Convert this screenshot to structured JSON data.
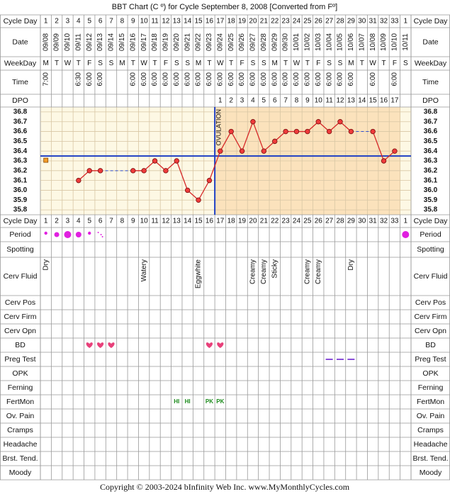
{
  "title": "BBT Chart (C º) for Cycle September 8, 2008  [Converted from Fº]",
  "row_labels": {
    "cycle_day": "Cycle Day",
    "date": "Date",
    "weekday": "WeekDay",
    "time": "Time",
    "dpo": "DPO",
    "period": "Period",
    "spotting": "Spotting",
    "cerv_fluid": "Cerv Fluid",
    "cerv_pos": "Cerv Pos",
    "cerv_firm": "Cerv Firm",
    "cerv_opn": "Cerv Opn",
    "bd": "BD",
    "preg_test": "Preg Test",
    "opk": "OPK",
    "ferning": "Ferning",
    "fertmon": "FertMon",
    "ov_pain": "Ov. Pain",
    "cramps": "Cramps",
    "headache": "Headache",
    "brst_tend": "Brst. Tend.",
    "moody": "Moody"
  },
  "columns": {
    "cycle_day": [
      1,
      2,
      3,
      4,
      5,
      6,
      7,
      8,
      9,
      10,
      11,
      12,
      13,
      14,
      15,
      16,
      17,
      18,
      19,
      20,
      21,
      22,
      23,
      24,
      25,
      26,
      27,
      28,
      29,
      30,
      31,
      32,
      33,
      1
    ],
    "date": [
      "09/08",
      "09/09",
      "09/10",
      "09/11",
      "09/12",
      "09/13",
      "09/14",
      "09/15",
      "09/16",
      "09/17",
      "09/18",
      "09/19",
      "09/20",
      "09/21",
      "09/22",
      "09/23",
      "09/24",
      "09/25",
      "09/26",
      "09/27",
      "09/28",
      "09/29",
      "09/30",
      "10/01",
      "10/02",
      "10/03",
      "10/04",
      "10/05",
      "10/06",
      "10/07",
      "10/08",
      "10/09",
      "10/10",
      "10/11"
    ],
    "weekday": [
      "M",
      "T",
      "W",
      "T",
      "F",
      "S",
      "S",
      "M",
      "T",
      "W",
      "T",
      "F",
      "S",
      "S",
      "M",
      "T",
      "W",
      "T",
      "F",
      "S",
      "S",
      "M",
      "T",
      "W",
      "T",
      "F",
      "S",
      "S",
      "M",
      "T",
      "W",
      "T",
      "F",
      "S"
    ],
    "time": [
      "7:00",
      null,
      null,
      "6:30",
      "6:00",
      "6:00",
      null,
      null,
      "6:00",
      "6:00",
      "6:00",
      "6:00",
      "6:00",
      "6:00",
      "6:00",
      "6:00",
      "6:00",
      "6:00",
      "6:00",
      "6:00",
      "6:00",
      "6:00",
      "6:00",
      "6:00",
      "6:00",
      "6:00",
      "6:00",
      "6:00",
      "6:00",
      null,
      "6:00",
      null,
      "6:00",
      null
    ],
    "dpo": [
      null,
      null,
      null,
      null,
      null,
      null,
      null,
      null,
      null,
      null,
      null,
      null,
      null,
      null,
      null,
      null,
      1,
      2,
      3,
      4,
      5,
      6,
      7,
      8,
      9,
      10,
      11,
      12,
      13,
      14,
      15,
      16,
      17,
      null
    ],
    "cerv_fluid": [
      "Dry",
      null,
      null,
      null,
      null,
      null,
      null,
      null,
      null,
      "Watery",
      null,
      null,
      null,
      null,
      "Eggwhite",
      null,
      null,
      null,
      null,
      "Creamy",
      "Creamy",
      "Sticky",
      null,
      null,
      "Creamy",
      "Creamy",
      null,
      null,
      "Dry",
      null,
      null,
      null,
      null,
      null
    ],
    "fertmon": [
      null,
      null,
      null,
      null,
      null,
      null,
      null,
      null,
      null,
      null,
      null,
      null,
      "HI",
      "HI",
      null,
      "PK",
      "PK",
      null,
      null,
      null,
      null,
      null,
      null,
      null,
      null,
      null,
      null,
      null,
      null,
      null,
      null,
      null,
      null,
      null
    ]
  },
  "chart_data": {
    "type": "line",
    "color": "#d62828",
    "values": [
      null,
      null,
      null,
      36.1,
      36.2,
      36.2,
      null,
      null,
      36.2,
      36.2,
      36.3,
      36.2,
      36.3,
      36.0,
      35.9,
      36.1,
      36.4,
      36.6,
      36.4,
      36.7,
      36.4,
      36.5,
      36.6,
      36.6,
      36.6,
      36.7,
      36.6,
      36.7,
      36.6,
      null,
      36.6,
      36.3,
      36.4,
      null
    ],
    "ylim": [
      35.75,
      36.85
    ],
    "yticks": [
      35.8,
      35.9,
      {
        "value": 36,
        "label": "36.0"
      },
      36.1,
      36.2,
      36.3,
      36.4,
      36.5,
      36.6,
      36.7,
      36.8
    ],
    "coverline": 36.35,
    "coverline_color": "#1f3fc4",
    "ovulation_label": "OVULATION",
    "grid": true
  },
  "footer": "Copyright © 2003-2024 bInfinity Web Inc.     www.MyMonthlyCycles.com"
}
